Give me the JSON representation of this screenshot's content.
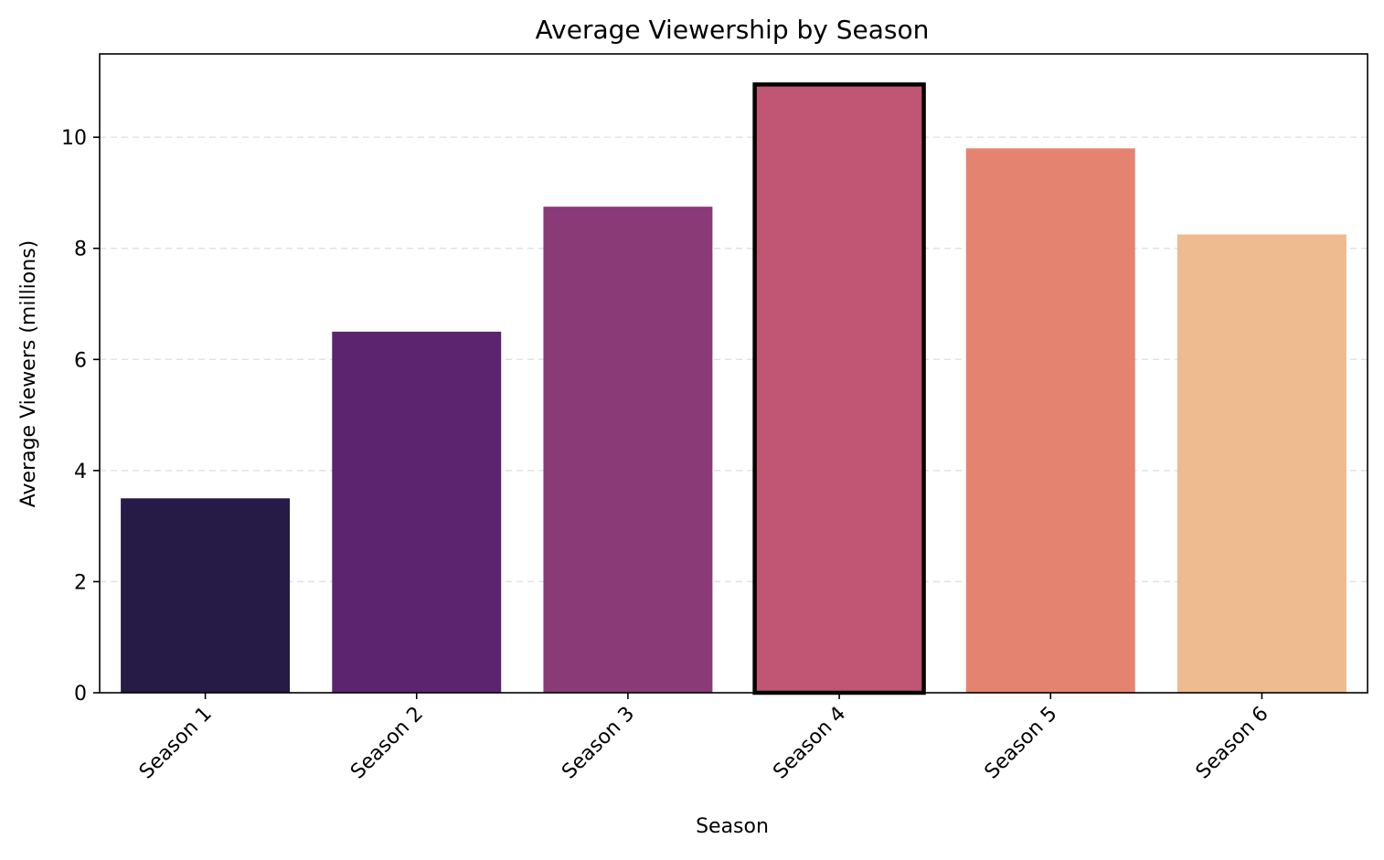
{
  "chart_data": {
    "type": "bar",
    "title": "Average Viewership by Season",
    "xlabel": "Season",
    "ylabel": "Average Viewers (millions)",
    "categories": [
      "Season 1",
      "Season 2",
      "Season 3",
      "Season 4",
      "Season 5",
      "Season 6"
    ],
    "values": [
      3.5,
      6.5,
      8.75,
      10.95,
      9.8,
      8.25
    ],
    "colors": [
      "#261b46",
      "#5c246f",
      "#893a77",
      "#c05673",
      "#e58371",
      "#eeba8f"
    ],
    "highlighted_category": "Season 4",
    "ylim": [
      0,
      11.5
    ],
    "yticks": [
      0,
      2,
      4,
      6,
      8,
      10
    ],
    "grid": "horizontal dashed",
    "legend": "none"
  }
}
